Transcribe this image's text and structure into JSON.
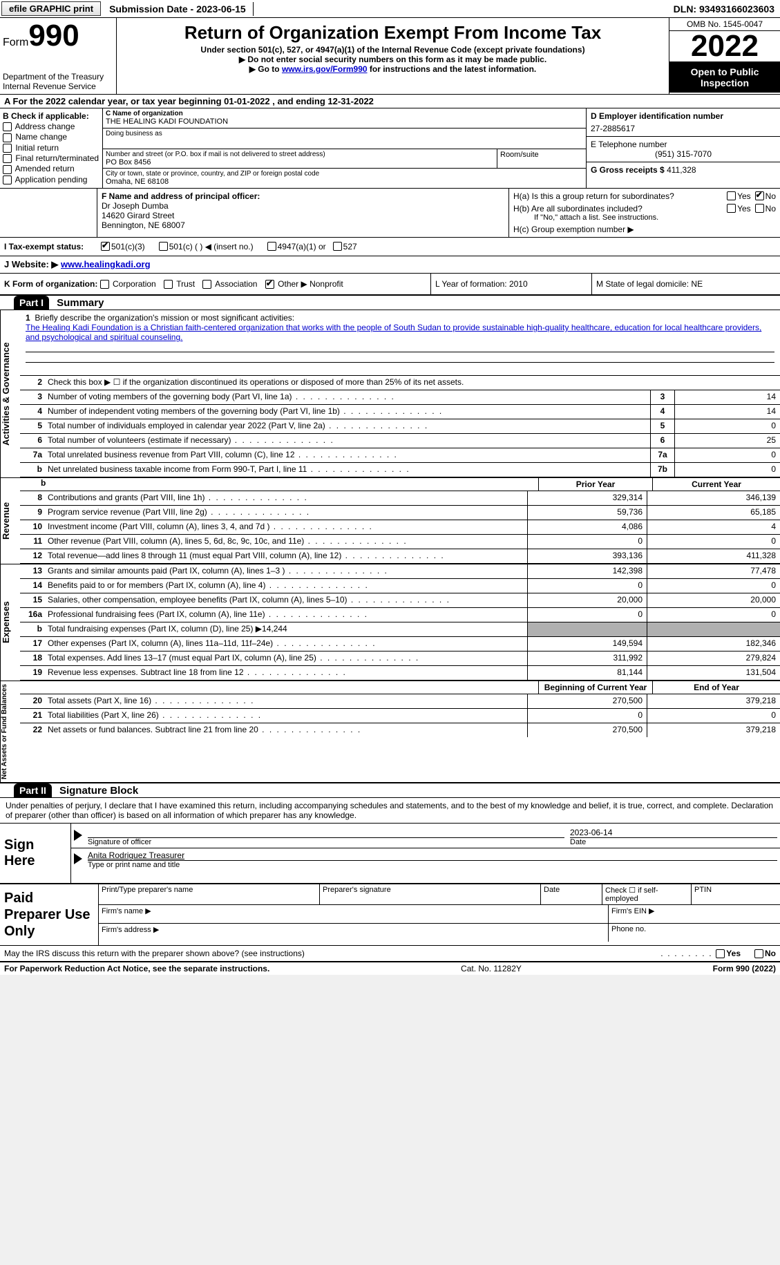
{
  "topbar": {
    "efile": "efile GRAPHIC print",
    "submission": "Submission Date - 2023-06-15",
    "dln": "DLN: 93493166023603"
  },
  "header": {
    "form_word": "Form",
    "form_num": "990",
    "dept": "Department of the Treasury",
    "irs": "Internal Revenue Service",
    "title": "Return of Organization Exempt From Income Tax",
    "subtitle": "Under section 501(c), 527, or 4947(a)(1) of the Internal Revenue Code (except private foundations)",
    "warn1": "▶ Do not enter social security numbers on this form as it may be made public.",
    "warn2_pre": "▶ Go to ",
    "warn2_link": "www.irs.gov/Form990",
    "warn2_post": " for instructions and the latest information.",
    "omb": "OMB No. 1545-0047",
    "year": "2022",
    "otp": "Open to Public Inspection"
  },
  "lineA": "A For the 2022 calendar year, or tax year beginning 01-01-2022    , and ending 12-31-2022",
  "sectionB": {
    "label": "B Check if applicable:",
    "items": [
      "Address change",
      "Name change",
      "Initial return",
      "Final return/terminated",
      "Amended return",
      "Application pending"
    ]
  },
  "sectionC": {
    "name_label": "C Name of organization",
    "name": "THE HEALING KADI FOUNDATION",
    "dba_label": "Doing business as",
    "addr_label": "Number and street (or P.O. box if mail is not delivered to street address)",
    "addr": "PO Box 8456",
    "room_label": "Room/suite",
    "city_label": "City or town, state or province, country, and ZIP or foreign postal code",
    "city": "Omaha, NE  68108"
  },
  "sectionD": {
    "ein_label": "D Employer identification number",
    "ein": "27-2885617",
    "phone_label": "E Telephone number",
    "phone": "(951) 315-7070",
    "gross_label": "G Gross receipts $ ",
    "gross": "411,328"
  },
  "sectionF": {
    "label": "F Name and address of principal officer:",
    "name": "Dr Joseph Dumba",
    "street": "14620 Girard Street",
    "city": "Bennington, NE  68007"
  },
  "sectionH": {
    "ha": "H(a)  Is this a group return for subordinates?",
    "hb": "H(b)  Are all subordinates included?",
    "hb_note": "If \"No,\" attach a list. See instructions.",
    "hc": "H(c)  Group exemption number ▶",
    "yes": "Yes",
    "no": "No"
  },
  "rowI": {
    "label": "I    Tax-exempt status:",
    "opt1": "501(c)(3)",
    "opt2": "501(c) (  ) ◀ (insert no.)",
    "opt3": "4947(a)(1) or",
    "opt4": "527"
  },
  "rowJ": {
    "label": "J   Website: ▶ ",
    "url": "www.healingkadi.org"
  },
  "rowK": {
    "left_label": "K Form of organization:",
    "opts": [
      "Corporation",
      "Trust",
      "Association",
      "Other ▶"
    ],
    "other_val": "Nonprofit",
    "mid": "L Year of formation: 2010",
    "right": "M State of legal domicile: NE"
  },
  "part1": {
    "header": "Part I",
    "title": "Summary",
    "mission_label": "Briefly describe the organization's mission or most significant activities:",
    "mission_num": "1",
    "mission": "The Healing Kadi Foundation is a Christian faith-centered organization that works with the people of South Sudan to provide sustainable high-quality healthcare, education for local healthcare providers, and psychological and spiritual counseling.",
    "line2": "Check this box ▶ ☐  if the organization discontinued its operations or disposed of more than 25% of its net assets.",
    "lines_gov": [
      {
        "n": "3",
        "desc": "Number of voting members of the governing body (Part VI, line 1a)",
        "box": "3",
        "val": "14"
      },
      {
        "n": "4",
        "desc": "Number of independent voting members of the governing body (Part VI, line 1b)",
        "box": "4",
        "val": "14"
      },
      {
        "n": "5",
        "desc": "Total number of individuals employed in calendar year 2022 (Part V, line 2a)",
        "box": "5",
        "val": "0"
      },
      {
        "n": "6",
        "desc": "Total number of volunteers (estimate if necessary)",
        "box": "6",
        "val": "25"
      },
      {
        "n": "7a",
        "desc": "Total unrelated business revenue from Part VIII, column (C), line 12",
        "box": "7a",
        "val": "0"
      },
      {
        "n": "b",
        "desc": "Net unrelated business taxable income from Form 990-T, Part I, line 11",
        "box": "7b",
        "val": "0"
      }
    ],
    "prior_year": "Prior Year",
    "current_year": "Current Year",
    "revenue": [
      {
        "n": "8",
        "desc": "Contributions and grants (Part VIII, line 1h)",
        "c1": "329,314",
        "c2": "346,139"
      },
      {
        "n": "9",
        "desc": "Program service revenue (Part VIII, line 2g)",
        "c1": "59,736",
        "c2": "65,185"
      },
      {
        "n": "10",
        "desc": "Investment income (Part VIII, column (A), lines 3, 4, and 7d )",
        "c1": "4,086",
        "c2": "4"
      },
      {
        "n": "11",
        "desc": "Other revenue (Part VIII, column (A), lines 5, 6d, 8c, 9c, 10c, and 11e)",
        "c1": "0",
        "c2": "0"
      },
      {
        "n": "12",
        "desc": "Total revenue—add lines 8 through 11 (must equal Part VIII, column (A), line 12)",
        "c1": "393,136",
        "c2": "411,328"
      }
    ],
    "expenses": [
      {
        "n": "13",
        "desc": "Grants and similar amounts paid (Part IX, column (A), lines 1–3 )",
        "c1": "142,398",
        "c2": "77,478"
      },
      {
        "n": "14",
        "desc": "Benefits paid to or for members (Part IX, column (A), line 4)",
        "c1": "0",
        "c2": "0"
      },
      {
        "n": "15",
        "desc": "Salaries, other compensation, employee benefits (Part IX, column (A), lines 5–10)",
        "c1": "20,000",
        "c2": "20,000"
      },
      {
        "n": "16a",
        "desc": "Professional fundraising fees (Part IX, column (A), line 11e)",
        "c1": "0",
        "c2": "0"
      },
      {
        "n": "b",
        "desc": "Total fundraising expenses (Part IX, column (D), line 25) ▶14,244",
        "c1": "",
        "c2": "",
        "shaded": true
      },
      {
        "n": "17",
        "desc": "Other expenses (Part IX, column (A), lines 11a–11d, 11f–24e)",
        "c1": "149,594",
        "c2": "182,346"
      },
      {
        "n": "18",
        "desc": "Total expenses. Add lines 13–17 (must equal Part IX, column (A), line 25)",
        "c1": "311,992",
        "c2": "279,824"
      },
      {
        "n": "19",
        "desc": "Revenue less expenses. Subtract line 18 from line 12",
        "c1": "81,144",
        "c2": "131,504"
      }
    ],
    "boy": "Beginning of Current Year",
    "eoy": "End of Year",
    "netassets": [
      {
        "n": "20",
        "desc": "Total assets (Part X, line 16)",
        "c1": "270,500",
        "c2": "379,218"
      },
      {
        "n": "21",
        "desc": "Total liabilities (Part X, line 26)",
        "c1": "0",
        "c2": "0"
      },
      {
        "n": "22",
        "desc": "Net assets or fund balances. Subtract line 21 from line 20",
        "c1": "270,500",
        "c2": "379,218"
      }
    ],
    "vtab_gov": "Activities & Governance",
    "vtab_rev": "Revenue",
    "vtab_exp": "Expenses",
    "vtab_net": "Net Assets or Fund Balances"
  },
  "part2": {
    "header": "Part II",
    "title": "Signature Block",
    "perjury": "Under penalties of perjury, I declare that I have examined this return, including accompanying schedules and statements, and to the best of my knowledge and belief, it is true, correct, and complete. Declaration of preparer (other than officer) is based on all information of which preparer has any knowledge.",
    "sign_here": "Sign Here",
    "sig_officer": "Signature of officer",
    "sig_date": "2023-06-14",
    "date_label": "Date",
    "officer_name": "Anita Rodriguez Treasurer",
    "type_label": "Type or print name and title",
    "paid_label": "Paid Preparer Use Only",
    "prep_name": "Print/Type preparer's name",
    "prep_sig": "Preparer's signature",
    "prep_date": "Date",
    "prep_check": "Check ☐ if self-employed",
    "ptin": "PTIN",
    "firm_name": "Firm's name   ▶",
    "firm_ein": "Firm's EIN ▶",
    "firm_addr": "Firm's address ▶",
    "phone": "Phone no.",
    "discuss": "May the IRS discuss this return with the preparer shown above? (see instructions)",
    "yes": "Yes",
    "no": "No"
  },
  "footer": {
    "left": "For Paperwork Reduction Act Notice, see the separate instructions.",
    "mid": "Cat. No. 11282Y",
    "right": "Form 990 (2022)"
  }
}
